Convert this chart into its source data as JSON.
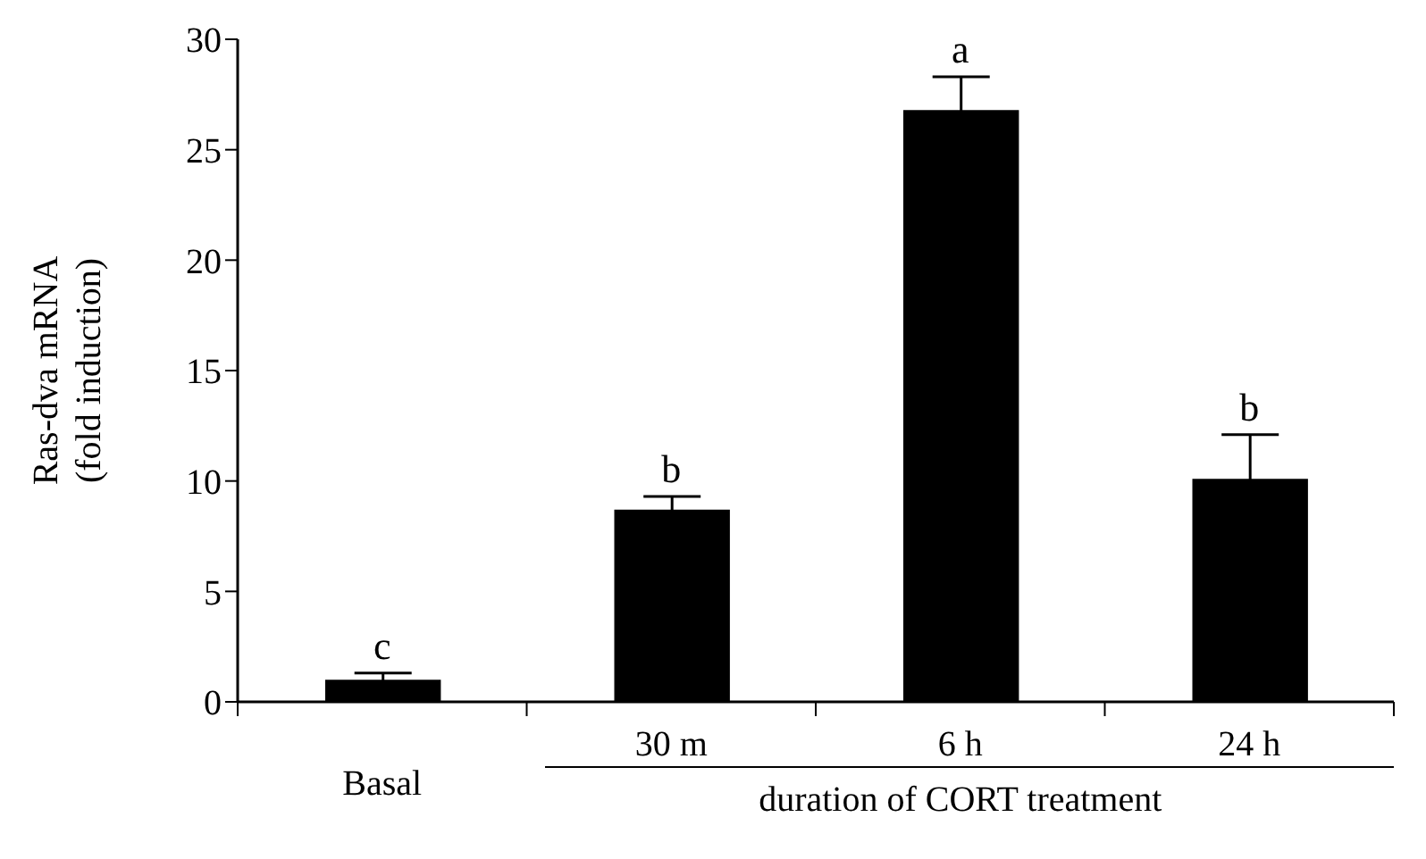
{
  "chart_data": {
    "type": "bar",
    "ylabel": "Ras-dva mRNA\n(fold induction)",
    "xlabel": "duration of CORT treatment",
    "categories": [
      "Basal",
      "30 m",
      "6 h",
      "24 h"
    ],
    "values": [
      1.0,
      8.7,
      26.8,
      10.1
    ],
    "errors": [
      0.3,
      0.6,
      1.5,
      2.0
    ],
    "color": "#000000",
    "ylim": [
      0,
      30
    ],
    "yticks": [
      0,
      5,
      10,
      15,
      20,
      25,
      30
    ],
    "grid": false,
    "legend": false,
    "annotations": [
      {
        "text": "c",
        "x": "Basal",
        "y": 1.3
      },
      {
        "text": "b",
        "x": "30 m",
        "y": 9.3
      },
      {
        "text": "a",
        "x": "6 h",
        "y": 28.3
      },
      {
        "text": "b",
        "x": "24 h",
        "y": 12.1
      }
    ]
  }
}
